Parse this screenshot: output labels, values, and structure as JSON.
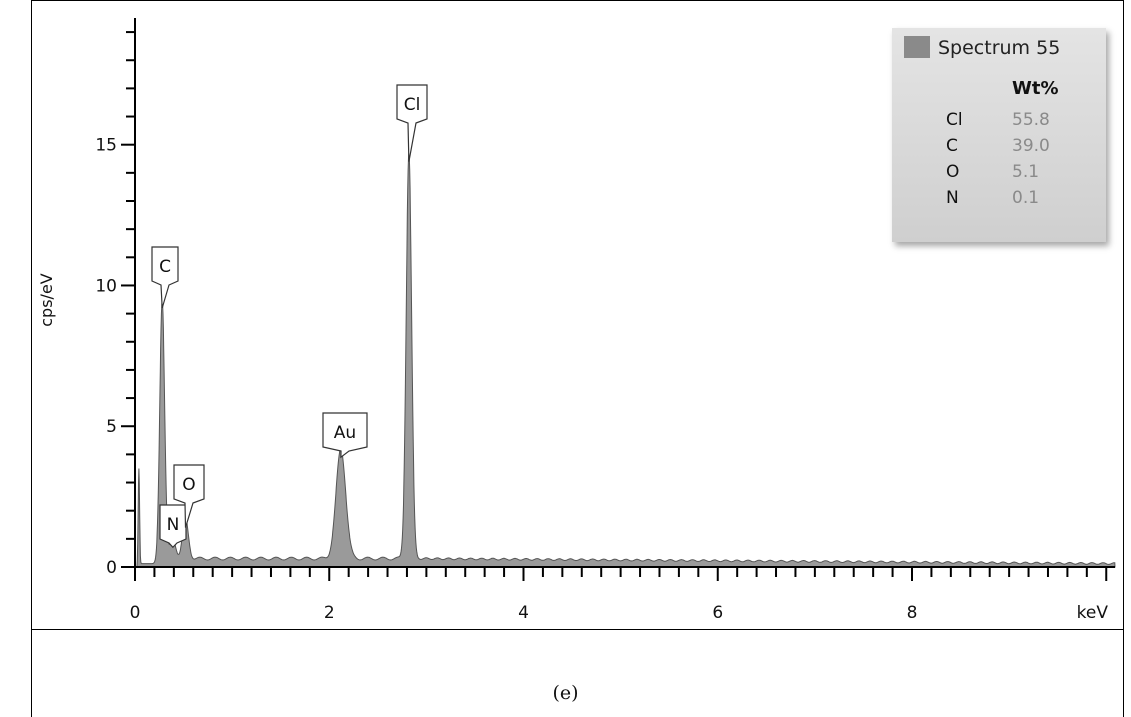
{
  "chart_data": {
    "type": "area",
    "xlabel": "keV",
    "ylabel": "cps/eV",
    "xlim": [
      0,
      10
    ],
    "ylim": [
      0,
      19.5
    ],
    "x_ticks": [
      0,
      2,
      4,
      6,
      8
    ],
    "y_ticks": [
      0,
      5,
      10,
      15
    ],
    "fill_color": "#9a9a9a",
    "line_color": "#555555",
    "peaks": [
      {
        "element": "N",
        "x": 0.39,
        "y": 0.7
      },
      {
        "element": "O",
        "x": 0.52,
        "y": 1.4
      },
      {
        "element": "C",
        "x": 0.28,
        "y": 9.2
      },
      {
        "element": "Au",
        "x": 2.12,
        "y": 3.9
      },
      {
        "element": "Cl",
        "x": 2.82,
        "y": 14.4
      }
    ],
    "background_level": 0.3
  },
  "legend": {
    "title": "Spectrum 55",
    "header": "Wt%",
    "rows": [
      {
        "element": "Cl",
        "value": "55.8"
      },
      {
        "element": "C",
        "value": "39.0"
      },
      {
        "element": "O",
        "value": "5.1"
      },
      {
        "element": "N",
        "value": "0.1"
      }
    ]
  },
  "caption": "(e)"
}
